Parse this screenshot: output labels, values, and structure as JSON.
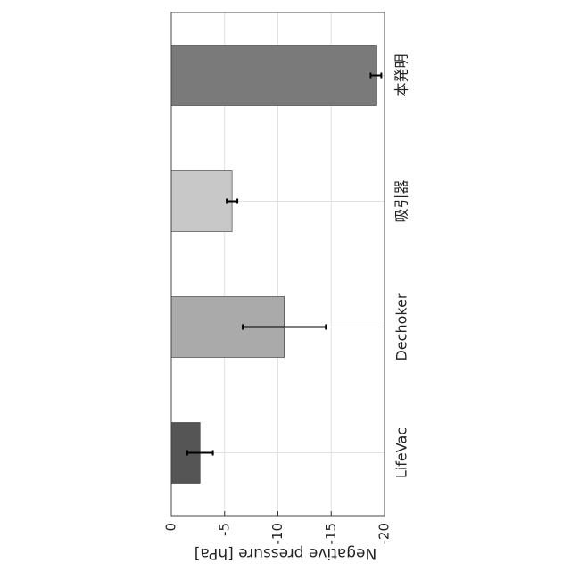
{
  "chart_data": {
    "type": "bar",
    "categories": [
      "LifeVac",
      "Dechoker",
      "吸引器",
      "本発明"
    ],
    "values": [
      -2.7,
      -10.6,
      -5.7,
      -19.2
    ],
    "errors": [
      1.2,
      3.9,
      0.5,
      0.5
    ],
    "colors": [
      "#555555",
      "#aaaaaa",
      "#c8c8c8",
      "#7a7a7a"
    ],
    "y_label": "Negative pressure [hPa]",
    "ylim": [
      -20,
      0
    ],
    "yticks": [
      0,
      -5,
      -10,
      -15,
      -20
    ],
    "grid": true
  }
}
